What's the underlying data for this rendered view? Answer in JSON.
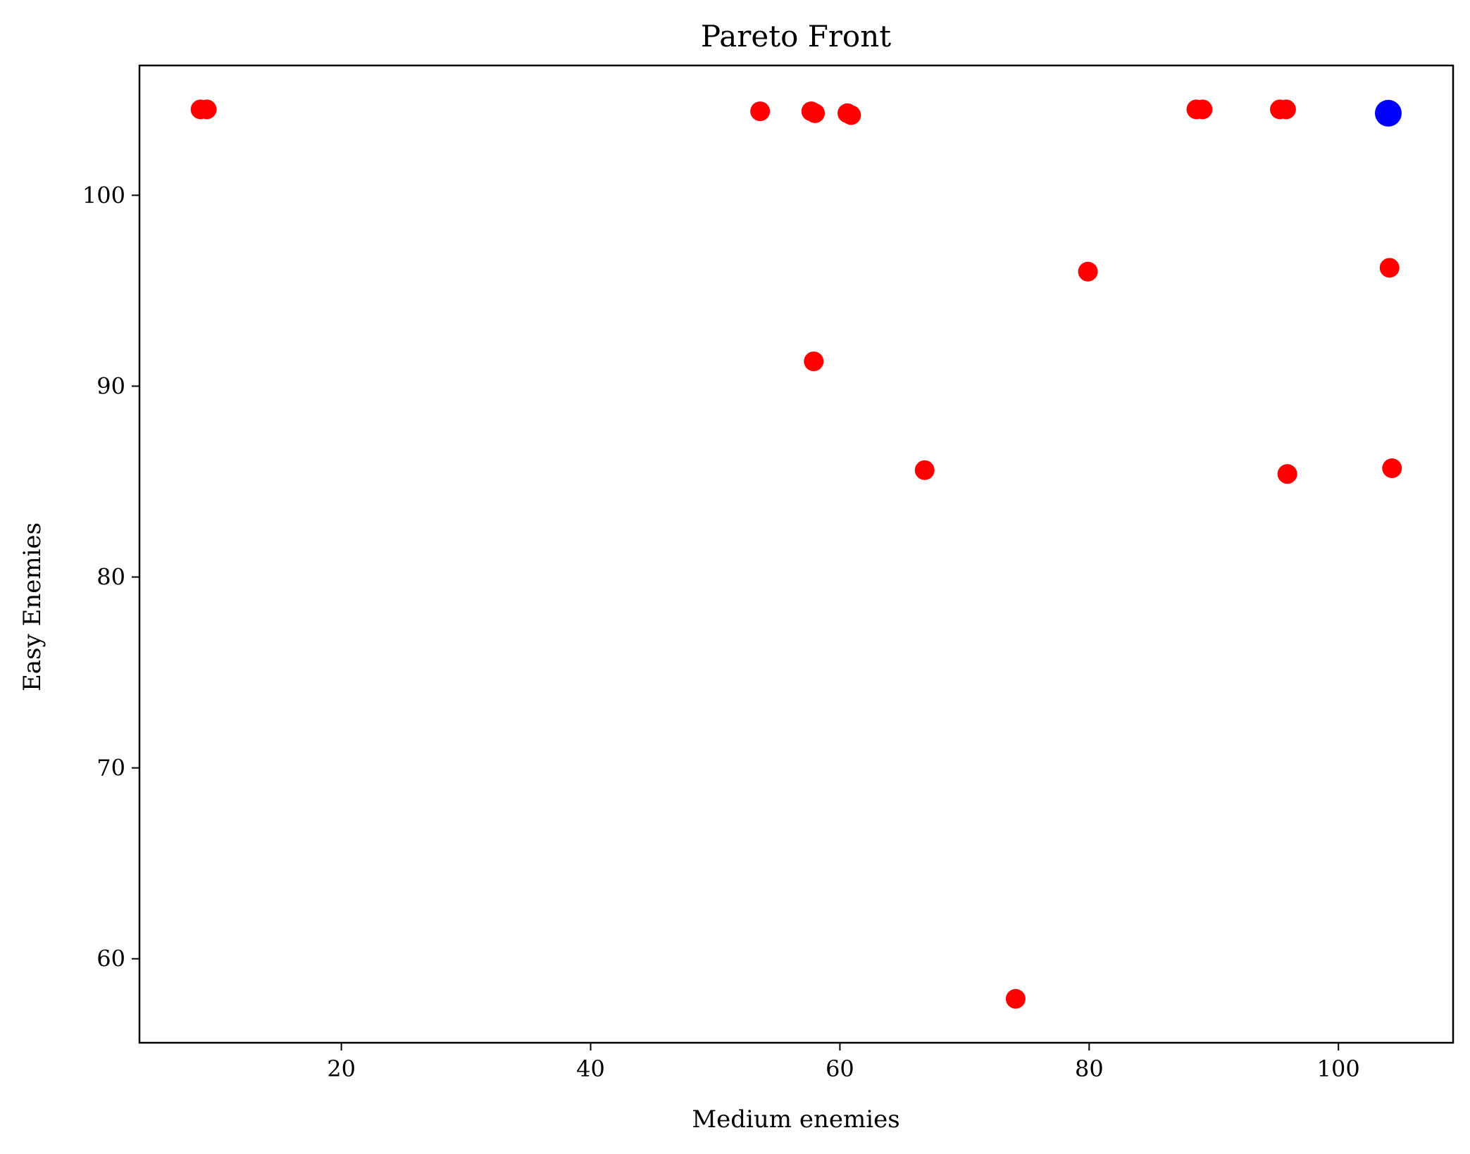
{
  "chart_data": {
    "type": "scatter",
    "title": "Pareto Front",
    "xlabel": "Medium enemies",
    "ylabel": "Easy Enemies",
    "xlim": [
      3.8,
      109.2
    ],
    "ylim": [
      55.6,
      106.8
    ],
    "xticks": [
      20,
      40,
      60,
      80,
      100
    ],
    "yticks": [
      60,
      70,
      80,
      90,
      100
    ],
    "grid": false,
    "series": [
      {
        "color": "#ff0000",
        "points": [
          {
            "x": 8.7,
            "y": 104.5
          },
          {
            "x": 9.2,
            "y": 104.5
          },
          {
            "x": 53.6,
            "y": 104.4
          },
          {
            "x": 57.7,
            "y": 104.4
          },
          {
            "x": 58.0,
            "y": 104.3
          },
          {
            "x": 60.6,
            "y": 104.3
          },
          {
            "x": 60.9,
            "y": 104.2
          },
          {
            "x": 88.6,
            "y": 104.5
          },
          {
            "x": 89.1,
            "y": 104.5
          },
          {
            "x": 95.3,
            "y": 104.5
          },
          {
            "x": 95.8,
            "y": 104.5
          },
          {
            "x": 79.9,
            "y": 96.0
          },
          {
            "x": 104.1,
            "y": 96.2
          },
          {
            "x": 57.9,
            "y": 91.3
          },
          {
            "x": 66.8,
            "y": 85.6
          },
          {
            "x": 95.9,
            "y": 85.4
          },
          {
            "x": 104.3,
            "y": 85.7
          },
          {
            "x": 74.1,
            "y": 57.9
          }
        ]
      },
      {
        "color": "#0000ff",
        "points": [
          {
            "x": 104.0,
            "y": 104.3
          }
        ]
      }
    ]
  }
}
